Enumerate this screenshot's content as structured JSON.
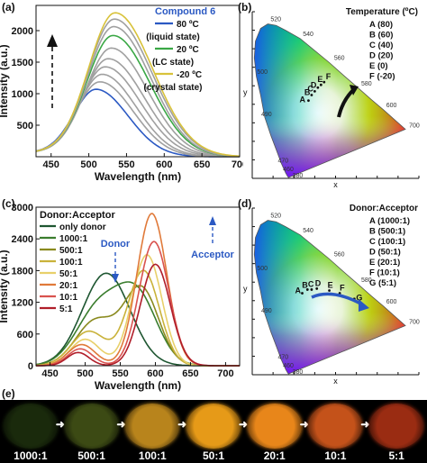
{
  "panels": {
    "a": {
      "label": "(a)",
      "ylabel": "Intensity (a.u.)",
      "xlabel": "Wavelength (nm)",
      "legend_title": "Compound 6",
      "legend": [
        {
          "text": "80 ºC",
          "color": "#2b59c3"
        },
        {
          "text": "(liquid state)",
          "color": ""
        },
        {
          "text": "20 ºC",
          "color": "#3aa845"
        },
        {
          "text": "(LC state)",
          "color": ""
        },
        {
          "text": "-20 ºC",
          "color": "#d8c23a"
        },
        {
          "text": "(crystal state)",
          "color": ""
        }
      ]
    },
    "b": {
      "label": "(b)",
      "legend_title": "Temperature (ºC)",
      "legend": [
        "A (80)",
        "B (60)",
        "C (40)",
        "D (20)",
        "E (0)",
        "F (-20)"
      ],
      "point_labels": [
        "A",
        "B",
        "C",
        "D",
        "E",
        "F"
      ],
      "x_label": "x",
      "y_label": "y",
      "wavelength_marks": [
        "520",
        "540",
        "560",
        "580",
        "600",
        "700",
        "500",
        "490",
        "470",
        "460",
        "380"
      ]
    },
    "c": {
      "label": "(c)",
      "ylabel": "Intensity (a.u.)",
      "xlabel": "Wavelength (nm)",
      "legend_title": "Donor:Acceptor",
      "legend": [
        {
          "text": "only donor",
          "color": "#1e5631"
        },
        {
          "text": "1000:1",
          "color": "#3a7d2e"
        },
        {
          "text": "500:1",
          "color": "#8a8a1e"
        },
        {
          "text": "100:1",
          "color": "#c9b23a"
        },
        {
          "text": "50:1",
          "color": "#e8d06a"
        },
        {
          "text": "20:1",
          "color": "#e07a3a"
        },
        {
          "text": "10:1",
          "color": "#d9534f"
        },
        {
          "text": "5:1",
          "color": "#b01e2a"
        }
      ],
      "donor_label": "Donor",
      "acceptor_label": "Acceptor"
    },
    "d": {
      "label": "(d)",
      "legend_title": "Donor:Acceptor",
      "legend": [
        "A (1000:1)",
        "B (500:1)",
        "C (100:1)",
        "D (50:1)",
        "E (20:1)",
        "F (10:1)",
        "G (5:1)"
      ],
      "point_labels": [
        "A",
        "B",
        "C",
        "D",
        "E",
        "F",
        "G"
      ],
      "x_label": "x",
      "y_label": "y",
      "wavelength_marks": [
        "520",
        "540",
        "560",
        "580",
        "600",
        "700",
        "500",
        "490",
        "470",
        "460",
        "380"
      ]
    },
    "e": {
      "label": "(e)",
      "photos": [
        "1000:1",
        "500:1",
        "100:1",
        "50:1",
        "20:1",
        "10:1",
        "5:1"
      ],
      "photo_colors": [
        "#1a2a0c",
        "#3c4a14",
        "#b8841c",
        "#e69a18",
        "#e8861a",
        "#c4521a",
        "#9a2c12"
      ]
    }
  },
  "chart_data": [
    {
      "type": "line",
      "panel": "a",
      "title": "",
      "xlabel": "Wavelength (nm)",
      "ylabel": "Intensity (a.u.)",
      "xlim": [
        430,
        700
      ],
      "ylim": [
        0,
        2400
      ],
      "xticks": [
        450,
        500,
        550,
        600,
        650,
        700
      ],
      "yticks": [
        500,
        1000,
        1500,
        2000
      ],
      "series": [
        {
          "name": "80 ºC",
          "color": "#2b59c3",
          "peak_x": 510,
          "peak_y": 1060,
          "width": 50
        },
        {
          "name": "",
          "color": "#a0a0a0",
          "peak_x": 515,
          "peak_y": 1180,
          "width": 52
        },
        {
          "name": "",
          "color": "#a0a0a0",
          "peak_x": 518,
          "peak_y": 1300,
          "width": 53
        },
        {
          "name": "",
          "color": "#a0a0a0",
          "peak_x": 522,
          "peak_y": 1420,
          "width": 55
        },
        {
          "name": "",
          "color": "#a0a0a0",
          "peak_x": 526,
          "peak_y": 1550,
          "width": 56
        },
        {
          "name": "",
          "color": "#a0a0a0",
          "peak_x": 530,
          "peak_y": 1720,
          "width": 57
        },
        {
          "name": "20 ºC",
          "color": "#3aa845",
          "peak_x": 532,
          "peak_y": 1920,
          "width": 58
        },
        {
          "name": "",
          "color": "#a0a0a0",
          "peak_x": 533,
          "peak_y": 2060,
          "width": 58
        },
        {
          "name": "",
          "color": "#a0a0a0",
          "peak_x": 534,
          "peak_y": 2180,
          "width": 59
        },
        {
          "name": "-20 ºC",
          "color": "#d8c23a",
          "peak_x": 535,
          "peak_y": 2280,
          "width": 59
        }
      ]
    },
    {
      "type": "line",
      "panel": "c",
      "title": "",
      "xlabel": "Wavelength (nm)",
      "ylabel": "Intensity (a.u.)",
      "xlim": [
        430,
        720
      ],
      "ylim": [
        0,
        3000
      ],
      "xticks": [
        450,
        500,
        550,
        600,
        650,
        700
      ],
      "yticks": [
        0,
        600,
        1200,
        1800,
        2400,
        3000
      ],
      "series": [
        {
          "name": "only donor",
          "color": "#1e5631",
          "peaks": [
            [
              530,
              1750,
              48
            ]
          ]
        },
        {
          "name": "1000:1",
          "color": "#3a7d2e",
          "peaks": [
            [
              520,
              1100,
              45
            ],
            [
              575,
              1250,
              40
            ]
          ]
        },
        {
          "name": "500:1",
          "color": "#8a8a1e",
          "peaks": [
            [
              515,
              850,
              40
            ],
            [
              580,
              1450,
              35
            ]
          ]
        },
        {
          "name": "100:1",
          "color": "#c9b23a",
          "peaks": [
            [
              505,
              650,
              35
            ],
            [
              583,
              1800,
              32
            ]
          ]
        },
        {
          "name": "50:1",
          "color": "#e8d06a",
          "peaks": [
            [
              500,
              500,
              30
            ],
            [
              588,
              2100,
              30
            ]
          ]
        },
        {
          "name": "20:1",
          "color": "#e07a3a",
          "peaks": [
            [
              495,
              400,
              28
            ],
            [
              595,
              2880,
              30
            ]
          ]
        },
        {
          "name": "10:1",
          "color": "#d9534f",
          "peaks": [
            [
              493,
              320,
              25
            ],
            [
              598,
              2350,
              30
            ]
          ]
        },
        {
          "name": "5:1",
          "color": "#b01e2a",
          "peaks": [
            [
              490,
              250,
              22
            ],
            [
              600,
              1920,
              30
            ]
          ]
        }
      ]
    }
  ]
}
